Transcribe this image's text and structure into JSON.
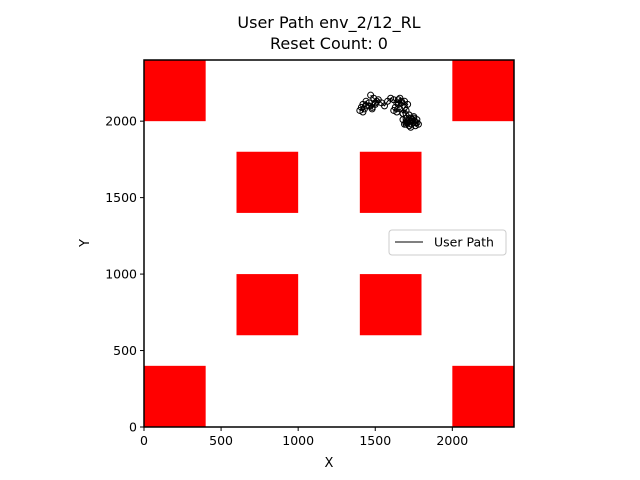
{
  "chart_data": {
    "type": "scatter",
    "title": "User Path env_2/12_RL",
    "subtitle": "Reset Count: 0",
    "xlabel": "X",
    "ylabel": "Y",
    "xlim": [
      0,
      2400
    ],
    "ylim": [
      0,
      2400
    ],
    "x_ticks": [
      0,
      500,
      1000,
      1500,
      2000
    ],
    "y_ticks": [
      0,
      500,
      1000,
      1500,
      2000
    ],
    "x_tick_labels": [
      "0",
      "500",
      "1000",
      "1500",
      "2000"
    ],
    "y_tick_labels": [
      "0",
      "500",
      "1000",
      "1500",
      "2000"
    ],
    "grid": false,
    "legend": {
      "placement": "center-right",
      "entries": [
        "User Path"
      ]
    },
    "obstacles": {
      "color": "#ff0000",
      "rects": [
        {
          "x0": 0,
          "x1": 400,
          "y0": 2000,
          "y1": 2400
        },
        {
          "x0": 2000,
          "x1": 2400,
          "y0": 2000,
          "y1": 2400
        },
        {
          "x0": 600,
          "x1": 1000,
          "y0": 1400,
          "y1": 1800
        },
        {
          "x0": 1400,
          "x1": 1800,
          "y0": 1400,
          "y1": 1800
        },
        {
          "x0": 600,
          "x1": 1000,
          "y0": 600,
          "y1": 1000
        },
        {
          "x0": 1400,
          "x1": 1800,
          "y0": 600,
          "y1": 1000
        },
        {
          "x0": 0,
          "x1": 400,
          "y0": 0,
          "y1": 400
        },
        {
          "x0": 2000,
          "x1": 2400,
          "y0": 0,
          "y1": 400
        }
      ]
    },
    "series": [
      {
        "name": "User Path",
        "color": "#000000",
        "marker": "open-circle",
        "x": [
          1470,
          1490,
          1510,
          1500,
          1480,
          1460,
          1440,
          1430,
          1420,
          1410,
          1400,
          1420,
          1440,
          1460,
          1480,
          1500,
          1520,
          1540,
          1560,
          1580,
          1600,
          1620,
          1640,
          1660,
          1670,
          1650,
          1630,
          1620,
          1640,
          1660,
          1680,
          1700,
          1720,
          1730,
          1710,
          1690,
          1680,
          1700,
          1720,
          1740,
          1760,
          1780,
          1770,
          1750,
          1730,
          1710,
          1700,
          1720,
          1740,
          1760,
          1770,
          1750,
          1730,
          1700,
          1680,
          1690,
          1710,
          1690,
          1670,
          1650
        ],
        "y": [
          2170,
          2150,
          2130,
          2110,
          2090,
          2120,
          2100,
          2080,
          2060,
          2090,
          2070,
          2110,
          2130,
          2100,
          2080,
          2120,
          2140,
          2120,
          2100,
          2130,
          2150,
          2140,
          2120,
          2150,
          2130,
          2110,
          2090,
          2070,
          2060,
          2080,
          2050,
          2070,
          2040,
          2020,
          2000,
          1980,
          2010,
          1990,
          1970,
          2000,
          1990,
          1980,
          2010,
          2030,
          2000,
          1990,
          2020,
          2040,
          2010,
          1970,
          1990,
          2020,
          1960,
          1980,
          2050,
          2090,
          2110,
          2130,
          2120,
          2140
        ]
      }
    ]
  }
}
